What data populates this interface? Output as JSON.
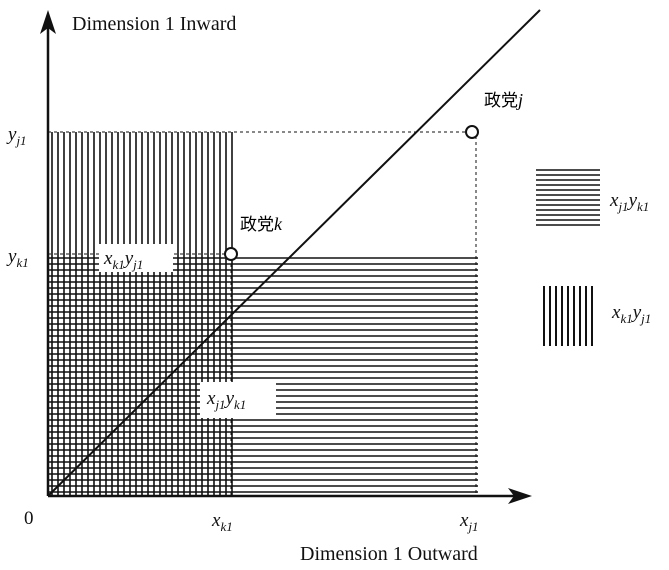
{
  "axes": {
    "y_title": "Dimension 1 Inward",
    "x_title": "Dimension 1 Outward",
    "origin": "0"
  },
  "ticks": {
    "x_k1": {
      "base": "x",
      "sub": "k1"
    },
    "x_j1": {
      "base": "x",
      "sub": "j1"
    },
    "y_j1": {
      "base": "y",
      "sub": "j1"
    },
    "y_k1": {
      "base": "y",
      "sub": "k1"
    }
  },
  "points": {
    "party_j": {
      "kanji": "政党",
      "var": "j"
    },
    "party_k": {
      "kanji": "政党",
      "var": "k"
    }
  },
  "region_labels": {
    "xk1yj1": {
      "a": "x",
      "a_sub": "k1",
      "b": "y",
      "b_sub": "j1"
    },
    "xj1yk1": {
      "a": "x",
      "a_sub": "j1",
      "b": "y",
      "b_sub": "k1"
    }
  },
  "legend": {
    "horizontal": {
      "a": "x",
      "a_sub": "j1",
      "b": "y",
      "b_sub": "k1"
    },
    "vertical": {
      "a": "x",
      "a_sub": "k1",
      "b": "y",
      "b_sub": "j1"
    }
  }
}
